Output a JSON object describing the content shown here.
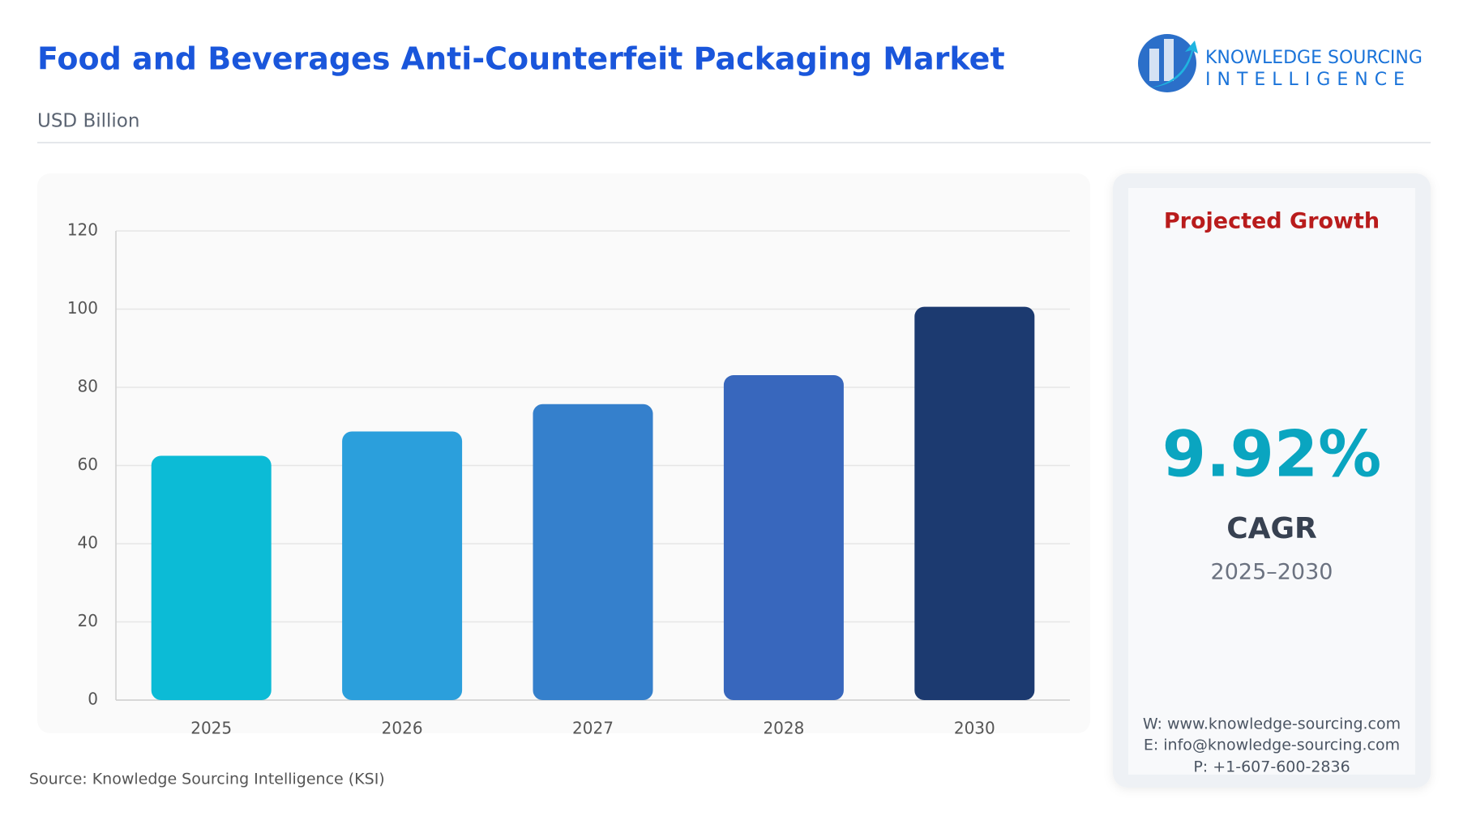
{
  "chart_data": {
    "type": "bar",
    "title": "Food and Beverages Anti-Counterfeit Packaging Market",
    "subtitle": "USD Billion",
    "source": "Source: Knowledge Sourcing Intelligence (KSI)",
    "categories": [
      "2025",
      "2026",
      "2027",
      "2028",
      "2030"
    ],
    "values": [
      62.5,
      68.7,
      75.7,
      83.1,
      100.6
    ],
    "colors": [
      "#0cbbd6",
      "#2b9fdc",
      "#3580cc",
      "#3867bd",
      "#1c3a70"
    ],
    "ylim": [
      0,
      120
    ],
    "yticks": [
      0,
      20,
      40,
      60,
      80,
      100,
      120
    ],
    "grid": true
  },
  "panel": {
    "heading": "Projected Growth",
    "value": "9.92%",
    "label": "CAGR",
    "period": "2025–2030",
    "contacts": [
      "W: www.knowledge-sourcing.com",
      "E: info@knowledge-sourcing.com",
      "P: +1-607-600-2836"
    ]
  },
  "logo": {
    "line1": "KNOWLEDGE SOURCING",
    "line2": "INTELLIGENCE"
  }
}
